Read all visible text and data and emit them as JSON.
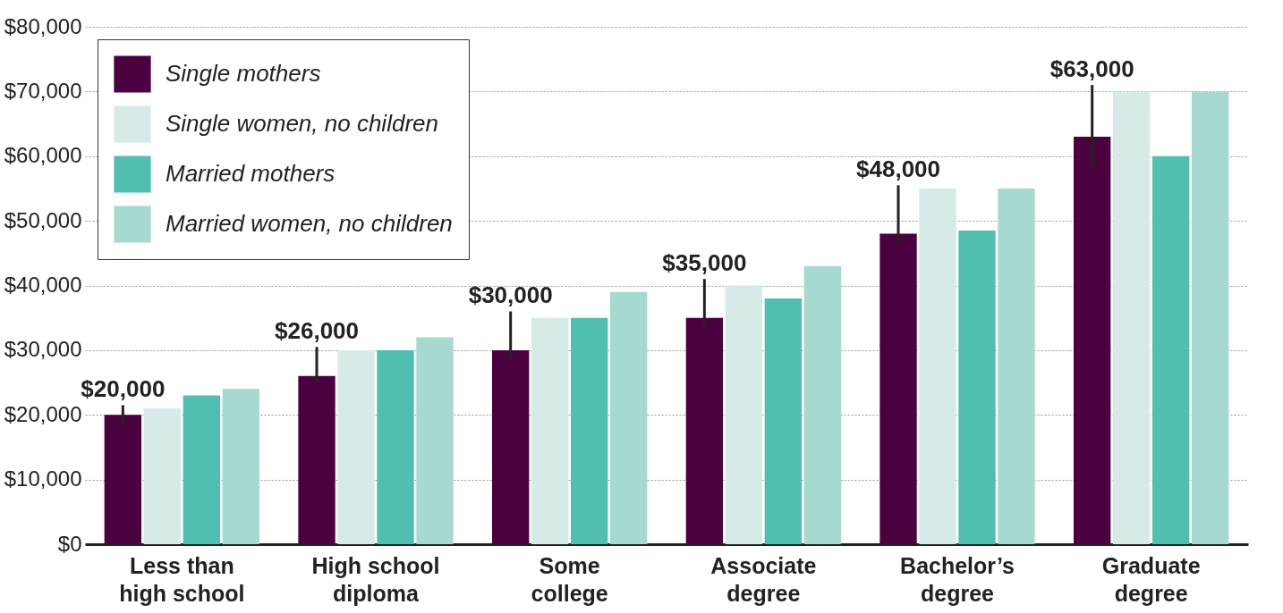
{
  "chart_data": {
    "type": "bar",
    "categories": [
      "Less than high school",
      "High school diploma",
      "Some college",
      "Associate degree",
      "Bachelor’s degree",
      "Graduate degree"
    ],
    "series": [
      {
        "name": "Single mothers",
        "color": "#4b0040",
        "values": [
          20000,
          26000,
          30000,
          35000,
          48000,
          63000
        ],
        "errors": [
          [
            18200,
            21500
          ],
          [
            25000,
            30500
          ],
          [
            28500,
            36000
          ],
          [
            33500,
            41000
          ],
          [
            46500,
            55500
          ],
          [
            58000,
            71000
          ]
        ],
        "value_labels": [
          "$20,000",
          "$26,000",
          "$30,000",
          "$35,000",
          "$48,000",
          "$63,000"
        ]
      },
      {
        "name": "Single women, no children",
        "color": "#d6ebe8",
        "values": [
          21000,
          30000,
          35000,
          40000,
          55000,
          70000
        ]
      },
      {
        "name": "Married mothers",
        "color": "#50bfaf",
        "values": [
          23000,
          30000,
          35000,
          38000,
          48500,
          60000
        ]
      },
      {
        "name": "Married women, no children",
        "color": "#a6d9d0",
        "values": [
          24000,
          32000,
          39000,
          43000,
          55000,
          70000
        ]
      }
    ],
    "ylim": [
      0,
      80000
    ],
    "yticks": [
      {
        "value": 0,
        "label": "$0"
      },
      {
        "value": 10000,
        "label": "$10,000"
      },
      {
        "value": 20000,
        "label": "$20,000"
      },
      {
        "value": 30000,
        "label": "$30,000"
      },
      {
        "value": 40000,
        "label": "$40,000"
      },
      {
        "value": 50000,
        "label": "$50,000"
      },
      {
        "value": 60000,
        "label": "$60,000"
      },
      {
        "value": 70000,
        "label": "$70,000"
      },
      {
        "value": 80000,
        "label": "$80,000"
      }
    ],
    "grid": "y",
    "legend": "top left"
  }
}
